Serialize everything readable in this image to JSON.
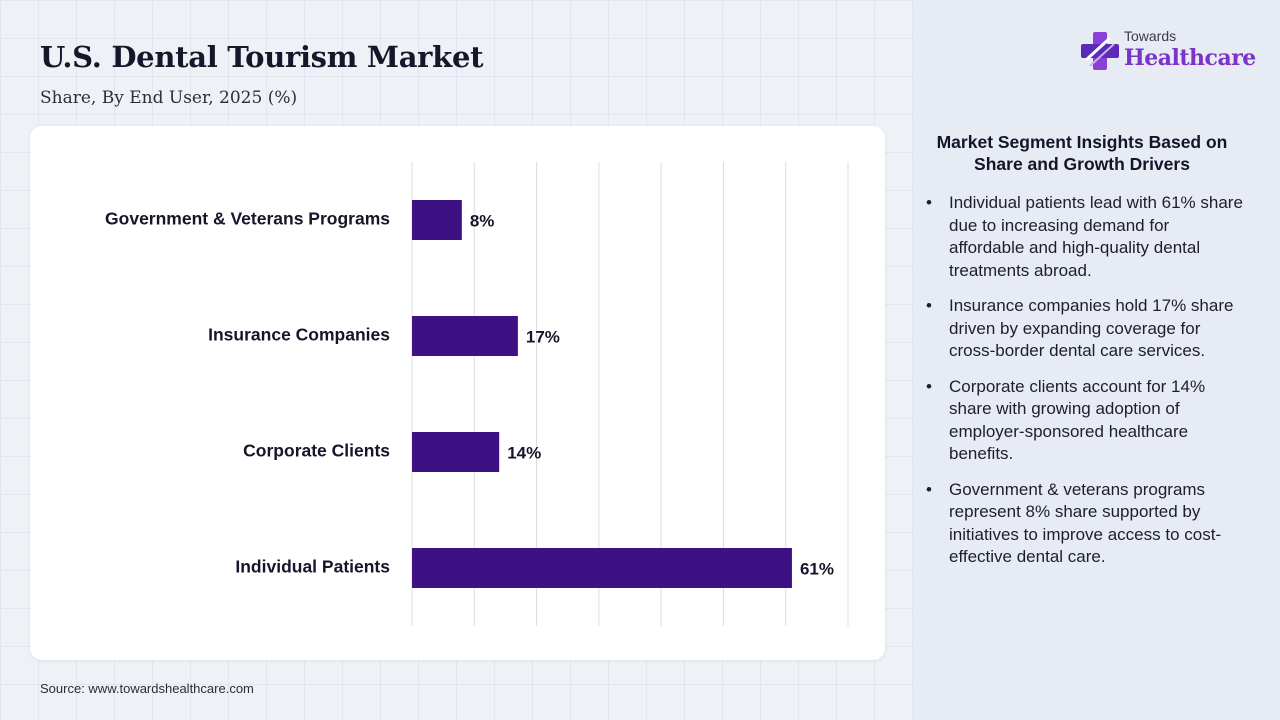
{
  "header": {
    "title": "U.S. Dental Tourism Market",
    "subtitle": "Share, By End User, 2025 (%)"
  },
  "logo": {
    "small": "Towards",
    "big": "Healthcare",
    "icon": "plus-cross-icon"
  },
  "chart_data": {
    "type": "bar",
    "orientation": "horizontal",
    "categories": [
      "Government & Veterans Programs",
      "Insurance Companies",
      "Corporate Clients",
      "Individual Patients"
    ],
    "values": [
      8,
      17,
      14,
      61
    ],
    "value_labels": [
      "8%",
      "17%",
      "14%",
      "61%"
    ],
    "unit": "%",
    "xlim": [
      0,
      70
    ],
    "grid": true,
    "bar_color": "#3d1183"
  },
  "insights": {
    "title": "Market Segment Insights Based on Share and Growth Drivers",
    "items": [
      "Individual patients lead with 61% share due to increasing demand for affordable and high-quality dental treatments abroad.",
      "Insurance companies hold 17% share driven by expanding coverage for cross-border dental care services.",
      "Corporate clients account for 14% share with growing adoption of employer-sponsored healthcare benefits.",
      "Government & veterans programs represent 8% share supported by initiatives to improve access to cost-effective dental care."
    ]
  },
  "footer": {
    "source": "Source: www.towardshealthcare.com"
  }
}
